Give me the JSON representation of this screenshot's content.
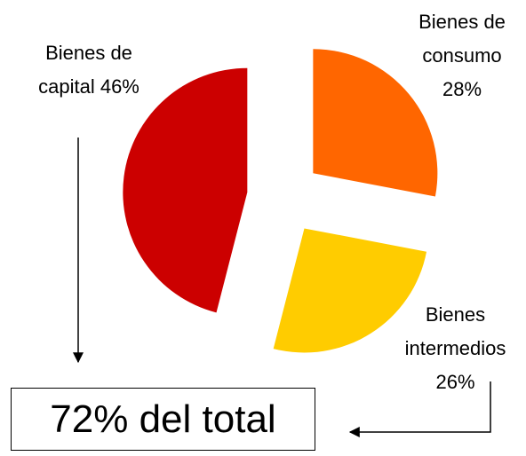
{
  "chart_data": {
    "type": "pie",
    "categories": [
      "Bienes de consumo",
      "Bienes intermedios",
      "Bienes de capital"
    ],
    "values": [
      28,
      26,
      46
    ],
    "value_labels": [
      "28%",
      "26%",
      "46%"
    ],
    "colors": [
      "#ff6600",
      "#ffcc00",
      "#cc0000"
    ],
    "annotation": "72% del total"
  }
}
